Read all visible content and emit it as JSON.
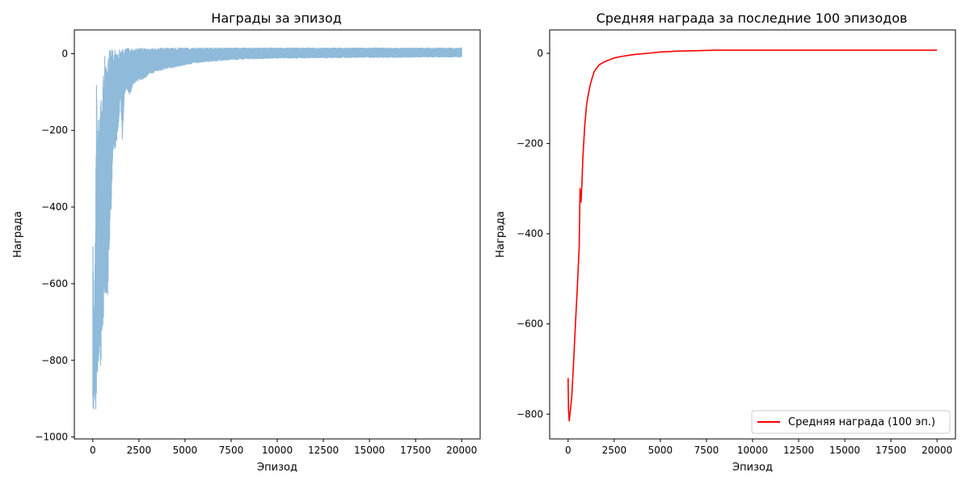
{
  "colors": {
    "raw_series": "#8fbad9",
    "avg_series": "#ff0000",
    "axis": "#000000",
    "background": "#ffffff"
  },
  "chart_data": [
    {
      "type": "line",
      "title": "Награды за эпизод",
      "xlabel": "Эпизод",
      "ylabel": "Награда",
      "xlim": [
        -1000,
        21000
      ],
      "ylim": [
        -1005,
        62
      ],
      "xticks": [
        0,
        2500,
        5000,
        7500,
        10000,
        12500,
        15000,
        17500,
        20000
      ],
      "yticks": [
        -1000,
        -800,
        -600,
        -400,
        -200,
        0
      ],
      "grid": false,
      "legend": false,
      "series": [
        {
          "name": "",
          "color": "#8fbad9",
          "envelope": {
            "x": [
              0,
              50,
              100,
              150,
              200,
              250,
              300,
              350,
              400,
              500,
              600,
              700,
              800,
              900,
              1000,
              1100,
              1200,
              1300,
              1400,
              1500,
              1600,
              1700,
              1800,
              2000,
              2200,
              2500,
              2800,
              3000,
              3500,
              4000,
              4500,
              5000,
              5500,
              6000,
              6500,
              7000,
              7500,
              8000,
              9000,
              10000,
              11000,
              12000,
              13000,
              14000,
              15000,
              16000,
              17000,
              18000,
              19000,
              20000
            ],
            "upper": [
              -420,
              -700,
              -600,
              -440,
              -25,
              -250,
              -130,
              -200,
              -110,
              -120,
              -10,
              0,
              -5,
              10,
              10,
              10,
              12,
              12,
              12,
              12,
              12,
              12,
              14,
              14,
              14,
              14,
              14,
              14,
              14,
              15,
              15,
              15,
              15,
              15,
              15,
              15,
              15,
              15,
              15,
              15,
              15,
              15,
              15,
              15,
              15,
              15,
              15,
              15,
              15,
              15
            ],
            "lower": [
              -930,
              -930,
              -890,
              -955,
              -890,
              -850,
              -820,
              -780,
              -840,
              -760,
              -700,
              -620,
              -640,
              -500,
              -400,
              -250,
              -250,
              -230,
              -200,
              -110,
              -230,
              -120,
              -90,
              -110,
              -80,
              -70,
              -65,
              -55,
              -45,
              -40,
              -35,
              -30,
              -25,
              -22,
              -20,
              -18,
              -16,
              -15,
              -13,
              -12,
              -12,
              -11,
              -11,
              -10,
              -10,
              -10,
              -10,
              -9,
              -9,
              -9
            ]
          }
        }
      ]
    },
    {
      "type": "line",
      "title": "Средняя награда за последние 100 эпизодов",
      "xlabel": "Эпизод",
      "ylabel": "Награда",
      "xlim": [
        -1000,
        21000
      ],
      "ylim": [
        -855,
        52
      ],
      "xticks": [
        0,
        2500,
        5000,
        7500,
        10000,
        12500,
        15000,
        17500,
        20000
      ],
      "yticks": [
        -800,
        -600,
        -400,
        -200,
        0
      ],
      "grid": false,
      "legend": "lower-right",
      "series": [
        {
          "name": "Средняя награда (100 эп.)",
          "color": "#ff0000",
          "x": [
            0,
            20,
            60,
            100,
            200,
            300,
            400,
            500,
            600,
            650,
            700,
            750,
            800,
            900,
            1000,
            1100,
            1200,
            1300,
            1400,
            1500,
            1700,
            2000,
            2500,
            3000,
            3500,
            4000,
            4500,
            5000,
            5500,
            6000,
            7000,
            8000,
            9000,
            10000,
            12000,
            14000,
            16000,
            18000,
            20000
          ],
          "y": [
            -720,
            -790,
            -815,
            -800,
            -760,
            -680,
            -600,
            -520,
            -430,
            -300,
            -330,
            -290,
            -230,
            -160,
            -115,
            -90,
            -70,
            -55,
            -42,
            -35,
            -25,
            -18,
            -10,
            -6,
            -3,
            -1,
            1,
            3,
            4,
            5,
            6,
            7,
            7,
            7,
            7,
            7,
            7,
            7,
            7
          ]
        }
      ]
    }
  ]
}
